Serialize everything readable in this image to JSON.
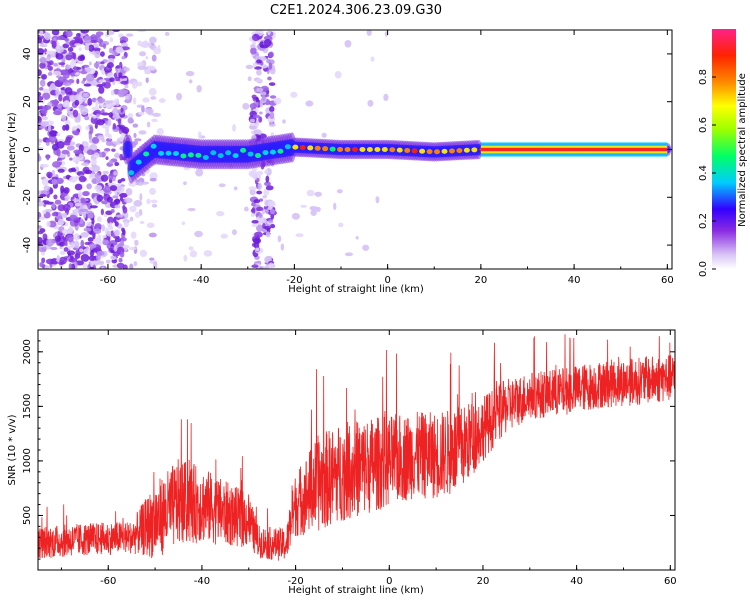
{
  "figure_title": "C2E1.2024.306.23.09.G30",
  "chart_data": [
    {
      "type": "heatmap",
      "xlabel": "Height of straight line (km)",
      "ylabel": "Frequency (Hz)",
      "xlim": [
        -75,
        61
      ],
      "ylim": [
        -50,
        50
      ],
      "x_ticks": [
        -60,
        -40,
        -20,
        0,
        20,
        40,
        60
      ],
      "y_ticks": [
        -40,
        -20,
        0,
        20,
        40
      ],
      "colorbar": {
        "label": "Normalized spectral amplitude",
        "range": [
          0,
          1
        ],
        "ticks": [
          0.0,
          0.2,
          0.4,
          0.6,
          0.8
        ],
        "colors": [
          "#ffffff",
          "#d9c4f7",
          "#8a2be2",
          "#3300ff",
          "#00ccff",
          "#00ff66",
          "#9cff00",
          "#ffff00",
          "#ff8800",
          "#ff2200",
          "#ff2288"
        ]
      },
      "ridge": {
        "description_points": [
          {
            "x": -55,
            "f": -8
          },
          {
            "x": -50,
            "f": 0
          },
          {
            "x": -40,
            "f": -2
          },
          {
            "x": -30,
            "f": -2
          },
          {
            "x": -20,
            "f": 1
          },
          {
            "x": -10,
            "f": 0
          },
          {
            "x": 0,
            "f": 0
          },
          {
            "x": 10,
            "f": -1
          },
          {
            "x": 20,
            "f": 0
          },
          {
            "x": 60,
            "f": 0
          }
        ]
      }
    },
    {
      "type": "line",
      "xlabel": "Height of straight line (km)",
      "ylabel": "SNR (10 * v/v)",
      "xlim": [
        -75,
        61
      ],
      "ylim": [
        0,
        2200
      ],
      "x_ticks": [
        -60,
        -40,
        -20,
        0,
        20,
        40,
        60
      ],
      "y_ticks": [
        500,
        1000,
        1500,
        2000
      ],
      "series": [
        {
          "color": "#ee2222",
          "x": [
            -75,
            -65,
            -55,
            -50,
            -45,
            -40,
            -35,
            -30,
            -28,
            -25,
            -22,
            -20,
            -15,
            -10,
            -5,
            0,
            5,
            10,
            15,
            20,
            25,
            30,
            35,
            40,
            45,
            50,
            55,
            60,
            61
          ],
          "y": [
            250,
            280,
            300,
            450,
            620,
            600,
            520,
            450,
            260,
            240,
            230,
            600,
            800,
            900,
            950,
            1000,
            1050,
            1050,
            1100,
            1300,
            1500,
            1600,
            1620,
            1660,
            1700,
            1720,
            1740,
            1760,
            1760
          ],
          "spread": [
            150,
            150,
            150,
            350,
            400,
            350,
            300,
            250,
            150,
            150,
            150,
            300,
            450,
            450,
            450,
            420,
            400,
            400,
            400,
            300,
            250,
            220,
            220,
            220,
            220,
            220,
            220,
            220,
            220
          ]
        }
      ]
    }
  ]
}
